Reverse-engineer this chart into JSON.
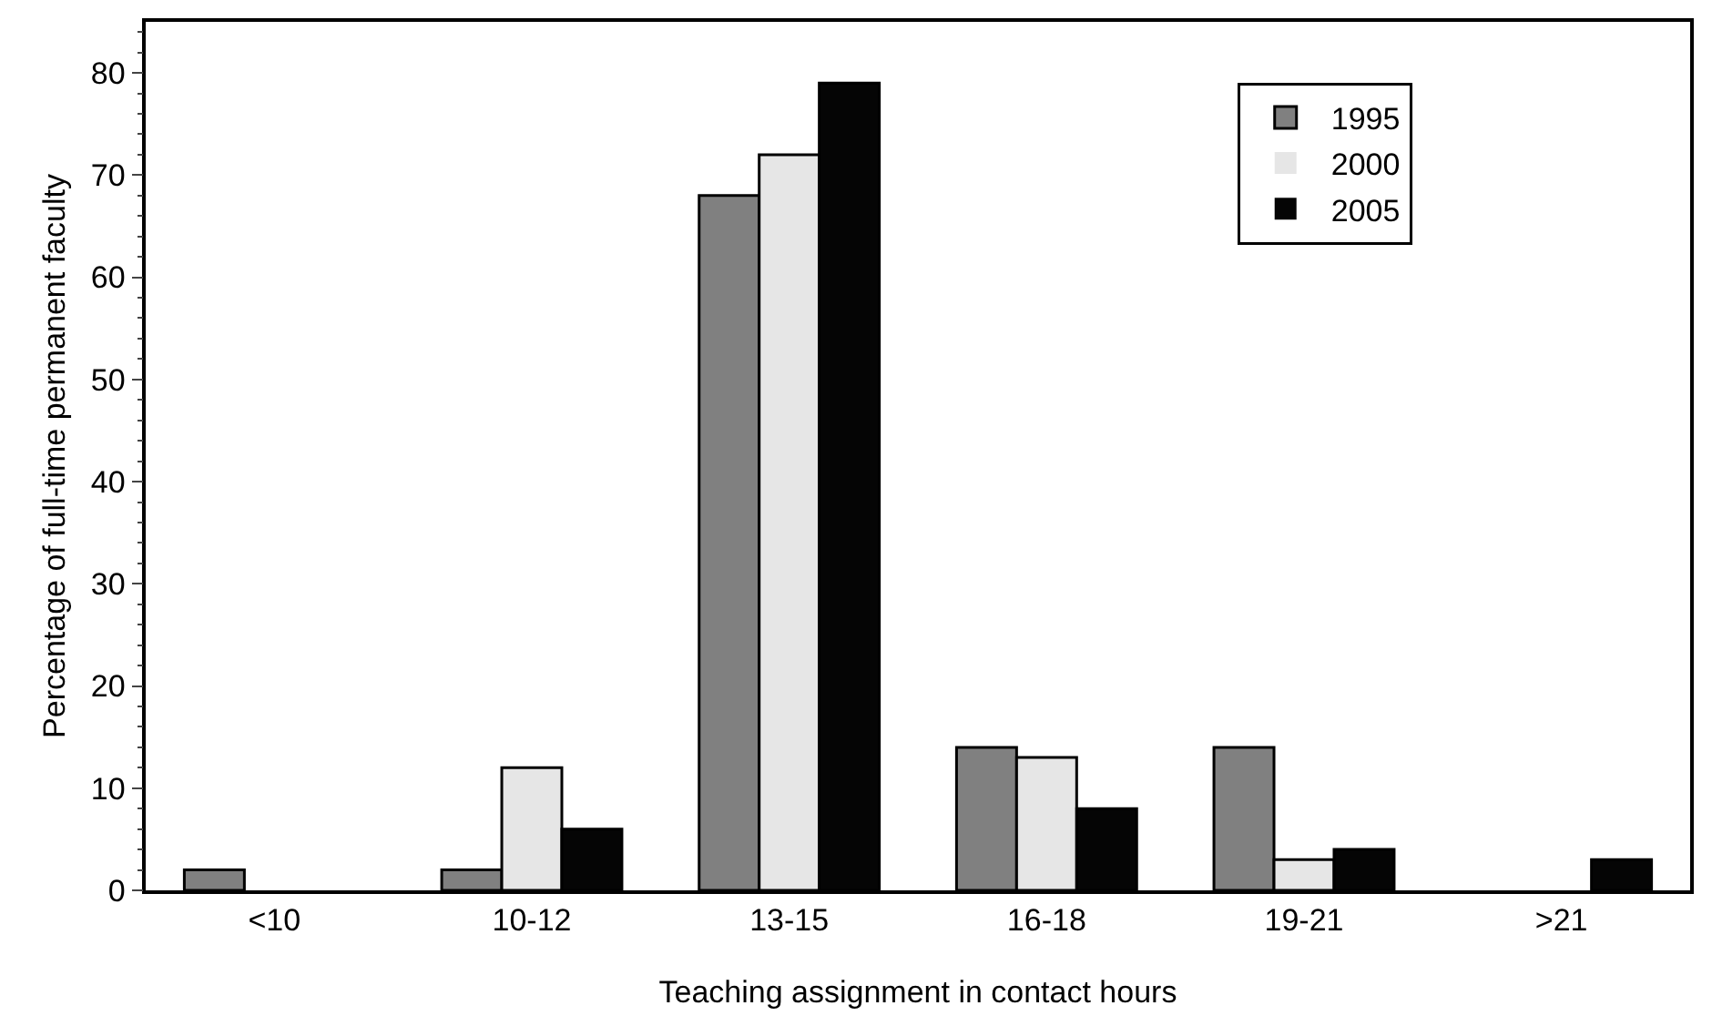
{
  "chart_data": {
    "type": "bar",
    "xlabel": "Teaching assignment in contact hours",
    "ylabel": "Percentage of full-time permanent faculty",
    "categories": [
      "<10",
      "10-12",
      "13-15",
      "16-18",
      "19-21",
      ">21"
    ],
    "series": [
      {
        "name": "1995",
        "color": "#808080",
        "values": [
          2,
          2,
          68,
          14,
          14,
          0
        ]
      },
      {
        "name": "2000",
        "color": "#e6e6e6",
        "values": [
          0,
          12,
          72,
          13,
          3,
          0
        ]
      },
      {
        "name": "2005",
        "color": "#050505",
        "values": [
          0,
          6,
          79,
          8,
          4,
          3
        ]
      }
    ],
    "ylim": [
      0,
      85
    ],
    "yticks": [
      0,
      10,
      20,
      30,
      40,
      50,
      60,
      70,
      80
    ],
    "grid": false,
    "legend": "top right"
  }
}
